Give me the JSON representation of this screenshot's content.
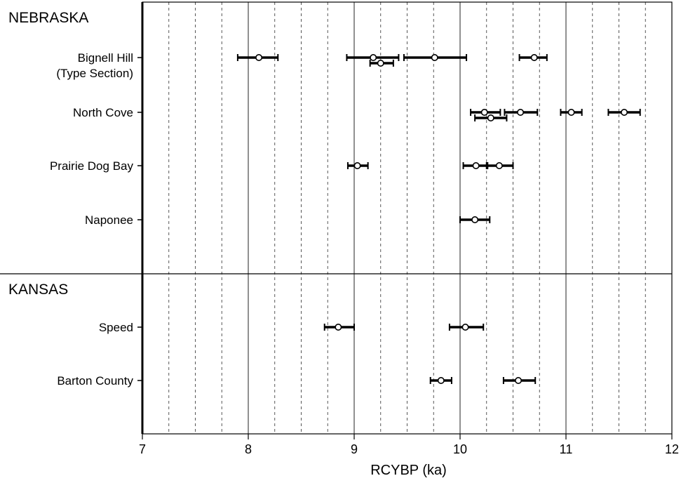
{
  "chart_data": {
    "type": "scatter",
    "xlabel": "RCYBP (ka)",
    "xlim": [
      7,
      12
    ],
    "x_ticks": [
      "7",
      "8",
      "9",
      "10",
      "11",
      "12"
    ],
    "grid": {
      "major": [
        8,
        9,
        10,
        11
      ],
      "minor": [
        7.25,
        7.5,
        7.75,
        8.25,
        8.5,
        8.75,
        9.25,
        9.5,
        9.75,
        10.25,
        10.5,
        10.75,
        11.25,
        11.5,
        11.75
      ],
      "minor_style": "dashed"
    },
    "groups": [
      {
        "name": "NEBRASKA",
        "sites": [
          {
            "label": "Bignell Hill\n(Type Section)",
            "dates": [
              {
                "value": 8.1,
                "low": 7.9,
                "high": 8.28
              },
              {
                "value": 9.18,
                "low": 8.93,
                "high": 9.42
              },
              {
                "value": 9.25,
                "low": 9.15,
                "high": 9.37
              },
              {
                "value": 9.76,
                "low": 9.47,
                "high": 10.06
              },
              {
                "value": 10.7,
                "low": 10.56,
                "high": 10.82
              }
            ]
          },
          {
            "label": "North Cove",
            "dates": [
              {
                "value": 10.23,
                "low": 10.1,
                "high": 10.38
              },
              {
                "value": 10.29,
                "low": 10.14,
                "high": 10.44
              },
              {
                "value": 10.57,
                "low": 10.42,
                "high": 10.73
              },
              {
                "value": 11.05,
                "low": 10.95,
                "high": 11.15
              },
              {
                "value": 11.55,
                "low": 11.4,
                "high": 11.7
              }
            ]
          },
          {
            "label": "Prairie Dog Bay",
            "dates": [
              {
                "value": 9.03,
                "low": 8.94,
                "high": 9.13
              },
              {
                "value": 10.15,
                "low": 10.03,
                "high": 10.26
              },
              {
                "value": 10.37,
                "low": 10.25,
                "high": 10.5
              }
            ]
          },
          {
            "label": "Naponee",
            "dates": [
              {
                "value": 10.14,
                "low": 10.0,
                "high": 10.28
              }
            ]
          }
        ]
      },
      {
        "name": "KANSAS",
        "sites": [
          {
            "label": "Speed",
            "dates": [
              {
                "value": 8.85,
                "low": 8.72,
                "high": 9.0
              },
              {
                "value": 10.05,
                "low": 9.9,
                "high": 10.22
              }
            ]
          },
          {
            "label": "Barton County",
            "dates": [
              {
                "value": 9.82,
                "low": 9.72,
                "high": 9.92
              },
              {
                "value": 10.55,
                "low": 10.41,
                "high": 10.71
              }
            ]
          }
        ]
      }
    ]
  }
}
